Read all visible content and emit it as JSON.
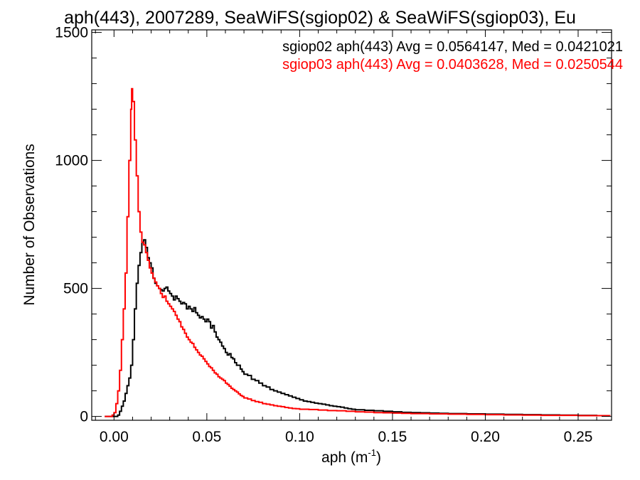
{
  "chart_data": {
    "type": "line",
    "title": "aph(443), 2007289, SeaWiFS(sgiop02) & SeaWiFS(sgiop03), Eu",
    "xlabel": "aph (m",
    "xlabel_sup": "-1",
    "xlabel_suffix": ")",
    "ylabel": "Number of Observations",
    "xlim": [
      -0.012,
      0.268
    ],
    "ylim": [
      -15,
      1510
    ],
    "x_ticks": [
      0.0,
      0.05,
      0.1,
      0.15,
      0.2,
      0.25
    ],
    "x_tick_labels": [
      "0.00",
      "0.05",
      "0.10",
      "0.15",
      "0.20",
      "0.25"
    ],
    "y_ticks": [
      0,
      500,
      1000,
      1500
    ],
    "y_tick_labels": [
      "0",
      "500",
      "1000",
      "1500"
    ],
    "grid": false,
    "step": true,
    "legend_position": "top-right",
    "series": [
      {
        "name": "sgiop02",
        "color": "#000000",
        "label": "sgiop02 aph(443) Avg = 0.0564147, Med = 0.0421021",
        "points": [
          [
            -0.005,
            0
          ],
          [
            0.0,
            0
          ],
          [
            0.002,
            5
          ],
          [
            0.003,
            20
          ],
          [
            0.004,
            40
          ],
          [
            0.005,
            60
          ],
          [
            0.006,
            90
          ],
          [
            0.007,
            120
          ],
          [
            0.008,
            150
          ],
          [
            0.009,
            200
          ],
          [
            0.01,
            300
          ],
          [
            0.011,
            420
          ],
          [
            0.012,
            520
          ],
          [
            0.013,
            590
          ],
          [
            0.014,
            640
          ],
          [
            0.015,
            680
          ],
          [
            0.016,
            690
          ],
          [
            0.017,
            660
          ],
          [
            0.018,
            620
          ],
          [
            0.019,
            600
          ],
          [
            0.02,
            580
          ],
          [
            0.021,
            540
          ],
          [
            0.022,
            520
          ],
          [
            0.023,
            510
          ],
          [
            0.024,
            500
          ],
          [
            0.025,
            495
          ],
          [
            0.026,
            490
          ],
          [
            0.027,
            500
          ],
          [
            0.028,
            505
          ],
          [
            0.029,
            490
          ],
          [
            0.03,
            480
          ],
          [
            0.031,
            470
          ],
          [
            0.032,
            455
          ],
          [
            0.033,
            470
          ],
          [
            0.034,
            460
          ],
          [
            0.035,
            450
          ],
          [
            0.036,
            440
          ],
          [
            0.037,
            445
          ],
          [
            0.038,
            440
          ],
          [
            0.039,
            420
          ],
          [
            0.04,
            430
          ],
          [
            0.041,
            420
          ],
          [
            0.042,
            410
          ],
          [
            0.043,
            425
          ],
          [
            0.044,
            405
          ],
          [
            0.045,
            395
          ],
          [
            0.046,
            385
          ],
          [
            0.047,
            390
          ],
          [
            0.048,
            380
          ],
          [
            0.049,
            370
          ],
          [
            0.05,
            380
          ],
          [
            0.051,
            370
          ],
          [
            0.052,
            345
          ],
          [
            0.053,
            355
          ],
          [
            0.054,
            330
          ],
          [
            0.055,
            310
          ],
          [
            0.056,
            300
          ],
          [
            0.057,
            290
          ],
          [
            0.058,
            275
          ],
          [
            0.059,
            265
          ],
          [
            0.06,
            250
          ],
          [
            0.061,
            240
          ],
          [
            0.062,
            245
          ],
          [
            0.063,
            230
          ],
          [
            0.064,
            225
          ],
          [
            0.065,
            210
          ],
          [
            0.066,
            200
          ],
          [
            0.067,
            200
          ],
          [
            0.068,
            185
          ],
          [
            0.069,
            175
          ],
          [
            0.07,
            165
          ],
          [
            0.072,
            160
          ],
          [
            0.074,
            145
          ],
          [
            0.076,
            140
          ],
          [
            0.078,
            130
          ],
          [
            0.08,
            120
          ],
          [
            0.082,
            115
          ],
          [
            0.084,
            105
          ],
          [
            0.086,
            100
          ],
          [
            0.088,
            95
          ],
          [
            0.09,
            90
          ],
          [
            0.092,
            85
          ],
          [
            0.094,
            80
          ],
          [
            0.096,
            75
          ],
          [
            0.098,
            70
          ],
          [
            0.1,
            65
          ],
          [
            0.102,
            60
          ],
          [
            0.104,
            58
          ],
          [
            0.106,
            55
          ],
          [
            0.108,
            52
          ],
          [
            0.11,
            50
          ],
          [
            0.112,
            48
          ],
          [
            0.114,
            45
          ],
          [
            0.116,
            42
          ],
          [
            0.118,
            40
          ],
          [
            0.12,
            38
          ],
          [
            0.122,
            36
          ],
          [
            0.124,
            33
          ],
          [
            0.126,
            30
          ],
          [
            0.128,
            28
          ],
          [
            0.13,
            26
          ],
          [
            0.135,
            24
          ],
          [
            0.14,
            22
          ],
          [
            0.145,
            20
          ],
          [
            0.15,
            18
          ],
          [
            0.155,
            16
          ],
          [
            0.16,
            15
          ],
          [
            0.165,
            14
          ],
          [
            0.17,
            13
          ],
          [
            0.175,
            12
          ],
          [
            0.18,
            11
          ],
          [
            0.19,
            10
          ],
          [
            0.2,
            9
          ],
          [
            0.21,
            8
          ],
          [
            0.22,
            7
          ],
          [
            0.23,
            6
          ],
          [
            0.24,
            5
          ],
          [
            0.25,
            4
          ],
          [
            0.26,
            3
          ],
          [
            0.267,
            3
          ]
        ]
      },
      {
        "name": "sgiop03",
        "color": "#ff0000",
        "label": "sgiop03 aph(443) Avg = 0.0403628, Med = 0.0250544",
        "points": [
          [
            -0.005,
            0
          ],
          [
            -0.002,
            0
          ],
          [
            -0.001,
            5
          ],
          [
            0.0,
            15
          ],
          [
            0.001,
            50
          ],
          [
            0.002,
            100
          ],
          [
            0.003,
            180
          ],
          [
            0.004,
            300
          ],
          [
            0.005,
            420
          ],
          [
            0.006,
            560
          ],
          [
            0.007,
            780
          ],
          [
            0.008,
            1000
          ],
          [
            0.009,
            1200
          ],
          [
            0.0095,
            1280
          ],
          [
            0.01,
            1230
          ],
          [
            0.011,
            1080
          ],
          [
            0.012,
            940
          ],
          [
            0.013,
            800
          ],
          [
            0.014,
            720
          ],
          [
            0.015,
            680
          ],
          [
            0.016,
            670
          ],
          [
            0.017,
            640
          ],
          [
            0.018,
            610
          ],
          [
            0.019,
            580
          ],
          [
            0.02,
            560
          ],
          [
            0.021,
            540
          ],
          [
            0.022,
            525
          ],
          [
            0.023,
            510
          ],
          [
            0.024,
            500
          ],
          [
            0.025,
            480
          ],
          [
            0.026,
            465
          ],
          [
            0.027,
            470
          ],
          [
            0.028,
            450
          ],
          [
            0.029,
            440
          ],
          [
            0.03,
            430
          ],
          [
            0.031,
            420
          ],
          [
            0.032,
            410
          ],
          [
            0.033,
            395
          ],
          [
            0.034,
            380
          ],
          [
            0.035,
            370
          ],
          [
            0.036,
            350
          ],
          [
            0.037,
            340
          ],
          [
            0.038,
            325
          ],
          [
            0.039,
            310
          ],
          [
            0.04,
            300
          ],
          [
            0.041,
            290
          ],
          [
            0.042,
            285
          ],
          [
            0.043,
            270
          ],
          [
            0.044,
            260
          ],
          [
            0.045,
            250
          ],
          [
            0.046,
            240
          ],
          [
            0.047,
            235
          ],
          [
            0.048,
            225
          ],
          [
            0.049,
            215
          ],
          [
            0.05,
            205
          ],
          [
            0.051,
            195
          ],
          [
            0.052,
            190
          ],
          [
            0.053,
            180
          ],
          [
            0.054,
            170
          ],
          [
            0.055,
            165
          ],
          [
            0.056,
            155
          ],
          [
            0.057,
            150
          ],
          [
            0.058,
            145
          ],
          [
            0.059,
            140
          ],
          [
            0.06,
            130
          ],
          [
            0.061,
            125
          ],
          [
            0.062,
            118
          ],
          [
            0.063,
            110
          ],
          [
            0.064,
            105
          ],
          [
            0.065,
            100
          ],
          [
            0.066,
            95
          ],
          [
            0.067,
            88
          ],
          [
            0.068,
            82
          ],
          [
            0.069,
            78
          ],
          [
            0.07,
            72
          ],
          [
            0.072,
            68
          ],
          [
            0.074,
            62
          ],
          [
            0.076,
            58
          ],
          [
            0.078,
            55
          ],
          [
            0.08,
            50
          ],
          [
            0.082,
            48
          ],
          [
            0.084,
            45
          ],
          [
            0.086,
            42
          ],
          [
            0.088,
            40
          ],
          [
            0.09,
            38
          ],
          [
            0.092,
            35
          ],
          [
            0.094,
            33
          ],
          [
            0.096,
            31
          ],
          [
            0.098,
            30
          ],
          [
            0.1,
            28
          ],
          [
            0.105,
            27
          ],
          [
            0.11,
            25
          ],
          [
            0.115,
            23
          ],
          [
            0.12,
            22
          ],
          [
            0.125,
            20
          ],
          [
            0.13,
            18
          ],
          [
            0.135,
            17
          ],
          [
            0.14,
            15
          ],
          [
            0.145,
            14
          ],
          [
            0.15,
            13
          ],
          [
            0.155,
            12
          ],
          [
            0.16,
            11
          ],
          [
            0.17,
            10
          ],
          [
            0.18,
            9
          ],
          [
            0.19,
            8
          ],
          [
            0.2,
            7
          ],
          [
            0.21,
            6
          ],
          [
            0.22,
            5
          ],
          [
            0.23,
            4
          ],
          [
            0.24,
            4
          ],
          [
            0.25,
            3
          ],
          [
            0.26,
            3
          ],
          [
            0.267,
            2
          ]
        ]
      }
    ]
  }
}
